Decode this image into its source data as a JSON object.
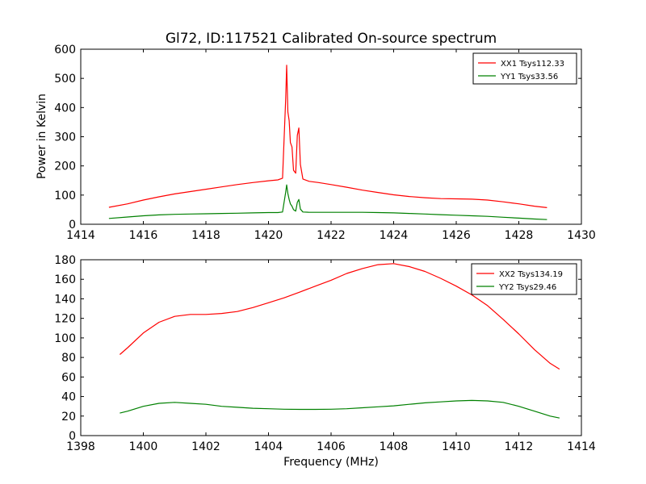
{
  "figure": {
    "title": "Gl72, ID:117521 Calibrated On-source spectrum",
    "ylabel": "Power in Kelvin",
    "xlabel": "Frequency (MHz)"
  },
  "chart_data": [
    {
      "type": "line",
      "title": "Gl72, ID:117521 Calibrated On-source spectrum",
      "ylabel": "Power in Kelvin",
      "xlabel": "",
      "xlim": [
        1414,
        1430
      ],
      "ylim": [
        0,
        600
      ],
      "xticks": [
        1414,
        1416,
        1418,
        1420,
        1422,
        1424,
        1426,
        1428,
        1430
      ],
      "yticks": [
        0,
        100,
        200,
        300,
        400,
        500,
        600
      ],
      "legend_position": "top-right",
      "grid": false,
      "series": [
        {
          "name": "XX1 Tsys112.33",
          "color": "#ff0000",
          "x": [
            1414.9,
            1415.5,
            1416.0,
            1416.5,
            1417.0,
            1417.5,
            1418.0,
            1418.5,
            1419.0,
            1419.5,
            1420.0,
            1420.3,
            1420.45,
            1420.55,
            1420.58,
            1420.62,
            1420.66,
            1420.7,
            1420.75,
            1420.8,
            1420.87,
            1420.92,
            1420.97,
            1421.02,
            1421.1,
            1421.3,
            1421.6,
            1422.0,
            1422.5,
            1423.0,
            1423.5,
            1424.0,
            1424.5,
            1425.0,
            1425.5,
            1426.0,
            1426.5,
            1427.0,
            1427.5,
            1428.0,
            1428.5,
            1428.9
          ],
          "y": [
            58,
            70,
            83,
            94,
            104,
            112,
            120,
            128,
            136,
            143,
            149,
            152,
            158,
            430,
            545,
            385,
            355,
            280,
            265,
            185,
            175,
            305,
            330,
            205,
            155,
            147,
            143,
            136,
            127,
            117,
            109,
            101,
            95,
            91,
            88,
            87,
            86,
            83,
            77,
            70,
            62,
            57
          ]
        },
        {
          "name": "YY1 Tsys33.56",
          "color": "#008000",
          "x": [
            1414.9,
            1415.5,
            1416.0,
            1416.5,
            1417.0,
            1417.5,
            1418.0,
            1418.5,
            1419.0,
            1419.5,
            1420.0,
            1420.3,
            1420.45,
            1420.55,
            1420.58,
            1420.62,
            1420.66,
            1420.7,
            1420.75,
            1420.8,
            1420.87,
            1420.92,
            1420.97,
            1421.02,
            1421.1,
            1421.3,
            1421.6,
            1422.0,
            1422.5,
            1423.0,
            1423.5,
            1424.0,
            1424.5,
            1425.0,
            1425.5,
            1426.0,
            1426.5,
            1427.0,
            1427.5,
            1428.0,
            1428.5,
            1428.9
          ],
          "y": [
            20,
            25,
            29,
            32,
            34,
            35,
            36,
            37,
            38,
            39,
            40,
            40,
            42,
            110,
            135,
            105,
            85,
            70,
            62,
            50,
            45,
            75,
            85,
            52,
            42,
            41,
            41,
            41,
            41,
            41,
            40,
            39,
            37,
            35,
            33,
            31,
            29,
            27,
            24,
            21,
            18,
            16
          ]
        }
      ]
    },
    {
      "type": "line",
      "title": "",
      "ylabel": "",
      "xlabel": "Frequency (MHz)",
      "xlim": [
        1398,
        1414
      ],
      "ylim": [
        0,
        180
      ],
      "xticks": [
        1398,
        1400,
        1402,
        1404,
        1406,
        1408,
        1410,
        1412,
        1414
      ],
      "yticks": [
        0,
        20,
        40,
        60,
        80,
        100,
        120,
        140,
        160,
        180
      ],
      "legend_position": "top-right",
      "grid": false,
      "series": [
        {
          "name": "XX2 Tsys134.19",
          "color": "#ff0000",
          "x": [
            1399.25,
            1399.5,
            1400.0,
            1400.5,
            1401.0,
            1401.5,
            1402.0,
            1402.5,
            1403.0,
            1403.5,
            1404.0,
            1404.5,
            1405.0,
            1405.5,
            1406.0,
            1406.5,
            1407.0,
            1407.5,
            1408.0,
            1408.5,
            1409.0,
            1409.5,
            1410.0,
            1410.5,
            1411.0,
            1411.5,
            1412.0,
            1412.5,
            1413.0,
            1413.3
          ],
          "y": [
            83,
            90,
            105,
            116,
            122,
            124,
            124,
            125,
            127,
            131,
            136,
            141,
            147,
            153,
            159,
            166,
            171,
            175,
            176,
            173,
            168,
            161,
            153,
            144,
            133,
            119,
            104,
            88,
            74,
            68
          ]
        },
        {
          "name": "YY2 Tsys29.46",
          "color": "#008000",
          "x": [
            1399.25,
            1399.5,
            1400.0,
            1400.5,
            1401.0,
            1401.5,
            1402.0,
            1402.5,
            1403.0,
            1403.5,
            1404.0,
            1404.5,
            1405.0,
            1405.5,
            1406.0,
            1406.5,
            1407.0,
            1407.5,
            1408.0,
            1408.5,
            1409.0,
            1409.5,
            1410.0,
            1410.5,
            1411.0,
            1411.5,
            1412.0,
            1412.5,
            1413.0,
            1413.3
          ],
          "y": [
            23,
            25,
            30,
            33,
            34,
            33,
            32,
            30,
            29,
            28,
            27.5,
            27,
            26.8,
            26.8,
            27,
            27.5,
            28.5,
            29.5,
            30.5,
            32,
            33.5,
            34.5,
            35.5,
            36,
            35.5,
            34,
            30,
            25,
            20,
            18
          ]
        }
      ]
    }
  ]
}
